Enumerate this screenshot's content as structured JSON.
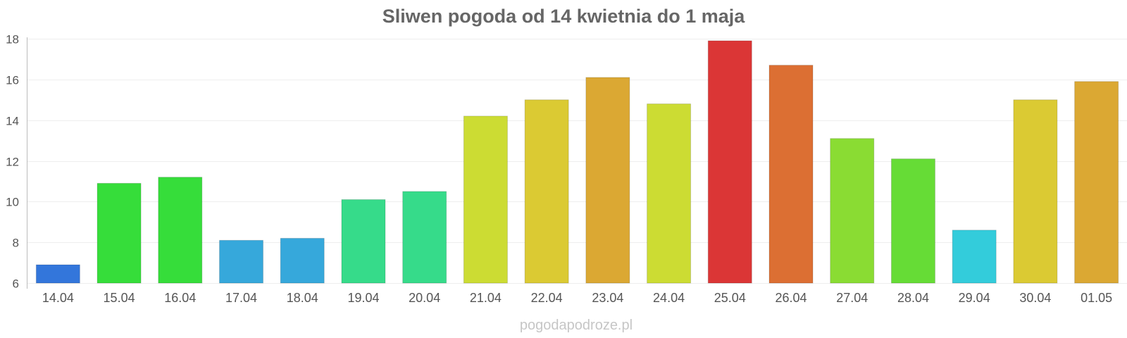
{
  "chart_data": {
    "type": "bar",
    "title": "Sliwen pogoda od 14 kwietnia do 1 maja",
    "xlabel": "",
    "ylabel": "",
    "ylim": [
      6,
      18
    ],
    "yticks": [
      6,
      8,
      10,
      12,
      14,
      16,
      18
    ],
    "grid": true,
    "categories": [
      "14.04",
      "15.04",
      "16.04",
      "17.04",
      "18.04",
      "19.04",
      "20.04",
      "21.04",
      "22.04",
      "23.04",
      "24.04",
      "25.04",
      "26.04",
      "27.04",
      "28.04",
      "29.04",
      "30.04",
      "01.05"
    ],
    "values": [
      6.9,
      10.9,
      11.2,
      8.1,
      8.2,
      10.1,
      10.5,
      14.2,
      15.0,
      16.1,
      14.8,
      17.9,
      16.7,
      13.1,
      12.1,
      8.6,
      15.0,
      15.9
    ],
    "colors": [
      "#3376db",
      "#36dd3a",
      "#36dd3a",
      "#36a8db",
      "#36a8db",
      "#36db8a",
      "#36db8a",
      "#ccdc33",
      "#dbca33",
      "#dba833",
      "#ccdc33",
      "#db3636",
      "#dc6f33",
      "#8adc33",
      "#66dc36",
      "#33ccdb",
      "#dbca33",
      "#dba833"
    ]
  },
  "footer": "pogodapodroze.pl"
}
